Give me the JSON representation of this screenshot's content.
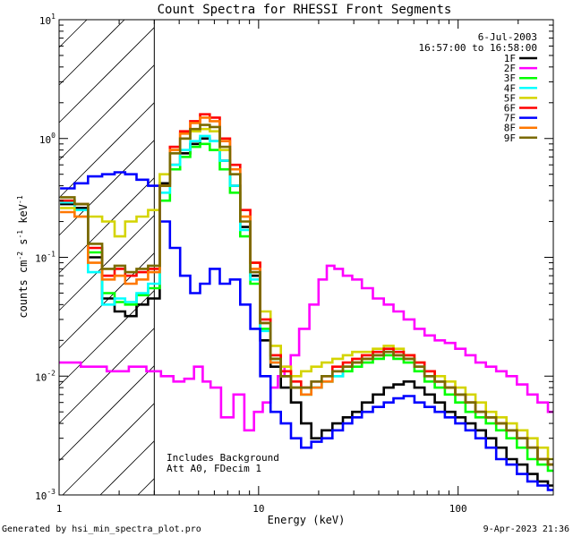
{
  "chart_data": {
    "type": "line",
    "title": "Count Spectra for RHESSI Front Segments",
    "xlabel": "Energy (keV)",
    "ylabel_parts": [
      "counts cm",
      "-2",
      " s",
      "-1",
      " keV",
      "-1"
    ],
    "xscale": "log",
    "yscale": "log",
    "xlim": [
      1,
      300
    ],
    "ylim": [
      0.001,
      10
    ],
    "x_ticks": [
      {
        "value": 1,
        "label": "1"
      },
      {
        "value": 10,
        "label": "10"
      },
      {
        "value": 100,
        "label": "100"
      }
    ],
    "y_ticks": [
      {
        "value": 0.001,
        "mant": "10",
        "exp": "-3"
      },
      {
        "value": 0.01,
        "mant": "10",
        "exp": "-2"
      },
      {
        "value": 0.1,
        "mant": "10",
        "exp": "-1"
      },
      {
        "value": 1,
        "mant": "10",
        "exp": "0"
      },
      {
        "value": 10,
        "mant": "10",
        "exp": "1"
      }
    ],
    "shaded_region": {
      "from": 1,
      "to": 3
    },
    "date": "6-Jul-2003",
    "time_range": "16:57:00 to 16:58:00",
    "annotations": [
      "Includes Background",
      "Att A0, FDecim 1"
    ],
    "series": [
      {
        "name": "1F",
        "color": "#000000",
        "x": [
          1.1,
          1.3,
          1.5,
          1.8,
          2.0,
          2.3,
          2.6,
          3.0,
          3.4,
          3.8,
          4.3,
          4.8,
          5.4,
          6.0,
          6.8,
          7.6,
          8.6,
          9.6,
          10.8,
          12.2,
          13.7,
          15.4,
          17.3,
          19.5,
          22,
          25,
          28,
          31,
          35,
          40,
          45,
          50,
          57,
          64,
          72,
          81,
          91,
          103,
          115,
          130,
          146,
          165,
          185,
          210,
          236,
          265,
          300
        ],
        "y": [
          0.28,
          0.26,
          0.1,
          0.045,
          0.035,
          0.032,
          0.04,
          0.045,
          0.42,
          0.6,
          0.75,
          0.9,
          1.0,
          0.95,
          0.65,
          0.4,
          0.18,
          0.07,
          0.02,
          0.012,
          0.008,
          0.006,
          0.004,
          0.003,
          0.0035,
          0.004,
          0.0045,
          0.005,
          0.006,
          0.007,
          0.008,
          0.0085,
          0.009,
          0.008,
          0.007,
          0.006,
          0.005,
          0.0045,
          0.004,
          0.0035,
          0.003,
          0.0025,
          0.002,
          0.0018,
          0.0015,
          0.0013,
          0.0012
        ]
      },
      {
        "name": "2F",
        "color": "#ff00ff",
        "x": [
          1.1,
          1.5,
          2.0,
          2.5,
          3.0,
          3.5,
          4.0,
          4.5,
          5.0,
          5.5,
          6.0,
          7.0,
          8.0,
          9.0,
          10,
          11,
          12,
          13,
          14,
          15,
          17,
          19,
          21,
          23,
          25,
          28,
          31,
          35,
          40,
          45,
          50,
          57,
          64,
          72,
          81,
          91,
          103,
          115,
          130,
          146,
          165,
          185,
          210,
          236,
          265,
          300
        ],
        "y": [
          0.013,
          0.012,
          0.011,
          0.012,
          0.011,
          0.01,
          0.009,
          0.0095,
          0.012,
          0.009,
          0.008,
          0.0045,
          0.007,
          0.0035,
          0.005,
          0.006,
          0.008,
          0.01,
          0.012,
          0.015,
          0.025,
          0.04,
          0.065,
          0.085,
          0.08,
          0.07,
          0.065,
          0.055,
          0.045,
          0.04,
          0.035,
          0.03,
          0.025,
          0.022,
          0.02,
          0.019,
          0.017,
          0.015,
          0.013,
          0.012,
          0.011,
          0.01,
          0.0085,
          0.007,
          0.006,
          0.005
        ]
      },
      {
        "name": "3F",
        "color": "#00ff00",
        "x": [
          1.1,
          1.3,
          1.5,
          1.8,
          2.0,
          2.3,
          2.6,
          3.0,
          3.4,
          3.8,
          4.3,
          4.8,
          5.4,
          6.0,
          6.8,
          7.6,
          8.6,
          9.6,
          10.8,
          12.2,
          13.7,
          15.4,
          17.3,
          19.5,
          22,
          25,
          28,
          31,
          35,
          40,
          45,
          50,
          57,
          64,
          72,
          81,
          91,
          103,
          115,
          130,
          146,
          165,
          185,
          210,
          236,
          265,
          300
        ],
        "y": [
          0.3,
          0.28,
          0.11,
          0.05,
          0.042,
          0.04,
          0.048,
          0.055,
          0.3,
          0.55,
          0.7,
          0.85,
          0.9,
          0.8,
          0.55,
          0.35,
          0.15,
          0.06,
          0.025,
          0.014,
          0.01,
          0.008,
          0.007,
          0.008,
          0.009,
          0.01,
          0.011,
          0.012,
          0.013,
          0.014,
          0.015,
          0.014,
          0.013,
          0.011,
          0.009,
          0.008,
          0.007,
          0.006,
          0.005,
          0.0045,
          0.004,
          0.0035,
          0.003,
          0.0025,
          0.002,
          0.0018,
          0.0016
        ]
      },
      {
        "name": "4F",
        "color": "#00ffff",
        "x": [
          1.1,
          1.3,
          1.5,
          1.8,
          2.0,
          2.3,
          2.6,
          3.0,
          3.4,
          3.8,
          4.3,
          4.8,
          5.4,
          6.0,
          6.8,
          7.6,
          8.6,
          9.6,
          10.8,
          12.2,
          13.7,
          15.4,
          17.3,
          19.5,
          22,
          25,
          28,
          31,
          35,
          40,
          45,
          50,
          57,
          64,
          72,
          81,
          91,
          103,
          115,
          130,
          146,
          165,
          185,
          210,
          236,
          265,
          300
        ],
        "y": [
          0.29,
          0.25,
          0.075,
          0.04,
          0.045,
          0.042,
          0.05,
          0.06,
          0.35,
          0.6,
          0.8,
          0.95,
          1.05,
          0.95,
          0.65,
          0.4,
          0.17,
          0.065,
          0.024,
          0.013,
          0.01,
          0.008,
          0.007,
          0.008,
          0.009,
          0.01,
          0.012,
          0.013,
          0.014,
          0.016,
          0.017,
          0.016,
          0.014,
          0.012,
          0.01,
          0.009,
          0.008,
          0.007,
          0.006,
          0.005,
          0.0045,
          0.004,
          0.0035,
          0.003,
          0.0025,
          0.002,
          0.0018
        ]
      },
      {
        "name": "5F",
        "color": "#d4d400",
        "x": [
          1.1,
          1.3,
          1.5,
          1.8,
          2.0,
          2.3,
          2.6,
          3.0,
          3.4,
          3.8,
          4.3,
          4.8,
          5.4,
          6.0,
          6.8,
          7.6,
          8.6,
          9.6,
          10.8,
          12.2,
          13.7,
          15.4,
          17.3,
          19.5,
          22,
          25,
          28,
          31,
          35,
          40,
          45,
          50,
          57,
          64,
          72,
          81,
          91,
          103,
          115,
          130,
          146,
          165,
          185,
          210,
          236,
          265,
          300
        ],
        "y": [
          0.26,
          0.22,
          0.22,
          0.2,
          0.15,
          0.2,
          0.22,
          0.25,
          0.5,
          0.8,
          1.0,
          1.15,
          1.2,
          1.15,
          0.8,
          0.5,
          0.22,
          0.09,
          0.035,
          0.018,
          0.012,
          0.01,
          0.011,
          0.012,
          0.013,
          0.014,
          0.015,
          0.016,
          0.016,
          0.017,
          0.018,
          0.017,
          0.015,
          0.013,
          0.011,
          0.01,
          0.009,
          0.008,
          0.007,
          0.006,
          0.005,
          0.0045,
          0.004,
          0.0035,
          0.003,
          0.0025,
          0.002
        ]
      },
      {
        "name": "6F",
        "color": "#ff0000",
        "x": [
          1.1,
          1.3,
          1.5,
          1.8,
          2.0,
          2.3,
          2.6,
          3.0,
          3.4,
          3.8,
          4.3,
          4.8,
          5.4,
          6.0,
          6.8,
          7.6,
          8.6,
          9.6,
          10.8,
          12.2,
          13.7,
          15.4,
          17.3,
          19.5,
          22,
          25,
          28,
          31,
          35,
          40,
          45,
          50,
          57,
          64,
          72,
          81,
          91,
          103,
          115,
          130,
          146,
          165,
          185,
          210,
          236,
          265,
          300
        ],
        "y": [
          0.3,
          0.28,
          0.12,
          0.07,
          0.08,
          0.07,
          0.075,
          0.08,
          0.4,
          0.85,
          1.15,
          1.4,
          1.6,
          1.5,
          1.0,
          0.6,
          0.25,
          0.09,
          0.03,
          0.015,
          0.011,
          0.009,
          0.008,
          0.009,
          0.01,
          0.012,
          0.013,
          0.014,
          0.015,
          0.016,
          0.017,
          0.016,
          0.015,
          0.013,
          0.011,
          0.009,
          0.008,
          0.007,
          0.006,
          0.005,
          0.0045,
          0.004,
          0.0035,
          0.003,
          0.0025,
          0.002,
          0.0018
        ]
      },
      {
        "name": "7F",
        "color": "#0000ff",
        "x": [
          1.1,
          1.3,
          1.5,
          1.8,
          2.0,
          2.3,
          2.6,
          3.0,
          3.4,
          3.8,
          4.3,
          4.8,
          5.4,
          6.0,
          6.8,
          7.6,
          8.6,
          9.6,
          10.8,
          12.2,
          13.7,
          15.4,
          17.3,
          19.5,
          22,
          25,
          28,
          31,
          35,
          40,
          45,
          50,
          57,
          64,
          72,
          81,
          91,
          103,
          115,
          130,
          146,
          165,
          185,
          210,
          236,
          265,
          300
        ],
        "y": [
          0.38,
          0.42,
          0.48,
          0.5,
          0.52,
          0.5,
          0.45,
          0.4,
          0.2,
          0.12,
          0.07,
          0.05,
          0.06,
          0.08,
          0.06,
          0.065,
          0.04,
          0.025,
          0.01,
          0.005,
          0.004,
          0.003,
          0.0025,
          0.0028,
          0.003,
          0.0035,
          0.004,
          0.0045,
          0.005,
          0.0055,
          0.006,
          0.0065,
          0.0068,
          0.006,
          0.0055,
          0.005,
          0.0045,
          0.004,
          0.0035,
          0.003,
          0.0025,
          0.002,
          0.0018,
          0.0015,
          0.0013,
          0.0012,
          0.0011
        ]
      },
      {
        "name": "8F",
        "color": "#ff7700",
        "x": [
          1.1,
          1.3,
          1.5,
          1.8,
          2.0,
          2.3,
          2.6,
          3.0,
          3.4,
          3.8,
          4.3,
          4.8,
          5.4,
          6.0,
          6.8,
          7.6,
          8.6,
          9.6,
          10.8,
          12.2,
          13.7,
          15.4,
          17.3,
          19.5,
          22,
          25,
          28,
          31,
          35,
          40,
          45,
          50,
          57,
          64,
          72,
          81,
          91,
          103,
          115,
          130,
          146,
          165,
          185,
          210,
          236,
          265,
          300
        ],
        "y": [
          0.24,
          0.22,
          0.09,
          0.065,
          0.07,
          0.06,
          0.065,
          0.075,
          0.4,
          0.8,
          1.1,
          1.35,
          1.5,
          1.4,
          0.95,
          0.55,
          0.22,
          0.08,
          0.028,
          0.013,
          0.01,
          0.008,
          0.007,
          0.008,
          0.009,
          0.011,
          0.012,
          0.013,
          0.014,
          0.015,
          0.016,
          0.015,
          0.014,
          0.012,
          0.01,
          0.009,
          0.008,
          0.007,
          0.006,
          0.005,
          0.0045,
          0.004,
          0.0035,
          0.003,
          0.0025,
          0.002,
          0.0018
        ]
      },
      {
        "name": "9F",
        "color": "#7a6a00",
        "x": [
          1.1,
          1.3,
          1.5,
          1.8,
          2.0,
          2.3,
          2.6,
          3.0,
          3.4,
          3.8,
          4.3,
          4.8,
          5.4,
          6.0,
          6.8,
          7.6,
          8.6,
          9.6,
          10.8,
          12.2,
          13.7,
          15.4,
          17.3,
          19.5,
          22,
          25,
          28,
          31,
          35,
          40,
          45,
          50,
          57,
          64,
          72,
          81,
          91,
          103,
          115,
          130,
          146,
          165,
          185,
          210,
          236,
          265,
          300
        ],
        "y": [
          0.32,
          0.28,
          0.13,
          0.08,
          0.085,
          0.075,
          0.08,
          0.085,
          0.4,
          0.75,
          1.0,
          1.2,
          1.3,
          1.25,
          0.85,
          0.5,
          0.2,
          0.075,
          0.028,
          0.014,
          0.01,
          0.008,
          0.008,
          0.009,
          0.01,
          0.011,
          0.012,
          0.013,
          0.014,
          0.015,
          0.016,
          0.015,
          0.014,
          0.012,
          0.01,
          0.009,
          0.008,
          0.007,
          0.006,
          0.005,
          0.0045,
          0.004,
          0.0035,
          0.003,
          0.0025,
          0.002,
          0.0018
        ]
      }
    ]
  },
  "footer": {
    "generated_by": "Generated by hsi_min_spectra_plot.pro",
    "timestamp": "9-Apr-2023 21:36"
  }
}
